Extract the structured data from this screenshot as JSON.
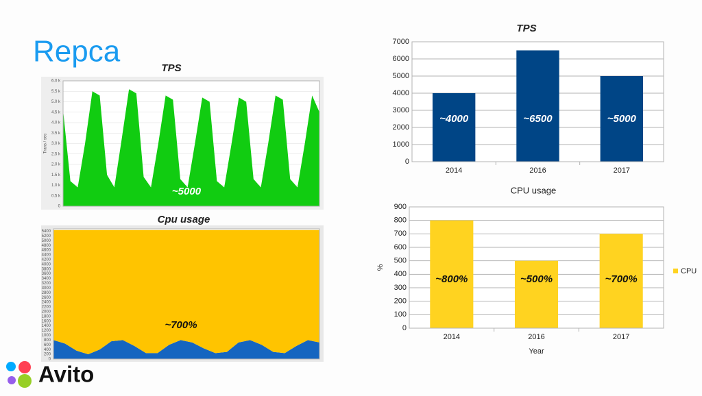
{
  "slide_title": "Repca",
  "logo": "Avito",
  "chart_data": [
    {
      "type": "area",
      "title": "TPS",
      "y_label": "Trans / sec",
      "color": "#11cc11",
      "annotation": "~5000",
      "values": [
        4600,
        1200,
        900,
        3000,
        5500,
        5300,
        1500,
        900,
        3200,
        5600,
        5400,
        1400,
        900,
        3000,
        5300,
        5100,
        1300,
        900,
        3000,
        5200,
        5000,
        1200,
        900,
        3000,
        5200,
        5000,
        1300,
        900,
        3000,
        5300,
        5100,
        1300,
        900,
        3000,
        5300,
        4500
      ],
      "ylim": [
        0,
        6000
      ],
      "yticks": [
        0,
        {
          "value": 500,
          "label": "0.5 k"
        },
        {
          "value": 1000,
          "label": "1.0 k"
        },
        {
          "value": 1500,
          "label": "1.5 k"
        },
        {
          "value": 2000,
          "label": "2.0 k"
        },
        {
          "value": 2500,
          "label": "2.5 k"
        },
        {
          "value": 3000,
          "label": "3.0 k"
        },
        {
          "value": 3500,
          "label": "3.5 k"
        },
        {
          "value": 4000,
          "label": "4.0 k"
        },
        {
          "value": 4500,
          "label": "4.5 k"
        },
        {
          "value": 5000,
          "label": "5.0 k"
        },
        {
          "value": 5500,
          "label": "5.5 k"
        },
        {
          "value": 6000,
          "label": "6.0 k"
        }
      ],
      "grid": true
    },
    {
      "type": "stacked-area",
      "title": "Cpu  usage",
      "annotation": "~700%",
      "series": [
        {
          "color": "#1565c0",
          "values": [
            800,
            650,
            350,
            200,
            400,
            750,
            800,
            550,
            250,
            250,
            600,
            800,
            700,
            450,
            250,
            300,
            700,
            800,
            600,
            300,
            250,
            550,
            800,
            700
          ]
        },
        {
          "color": "#ffc400",
          "values": [
            4650,
            4800,
            5100,
            5250,
            5050,
            4700,
            4650,
            4900,
            5200,
            5200,
            4850,
            4650,
            4750,
            5000,
            5200,
            5150,
            4750,
            4650,
            4850,
            5150,
            5200,
            4900,
            4650,
            4750
          ]
        }
      ],
      "ylim": [
        0,
        5500
      ],
      "yticks": [
        0,
        200,
        400,
        600,
        800,
        1000,
        1200,
        1400,
        1600,
        1800,
        2000,
        2200,
        2400,
        2600,
        2800,
        3000,
        3200,
        3400,
        3600,
        3800,
        4000,
        4200,
        4400,
        4600,
        4800,
        5000,
        5200,
        5400
      ],
      "grid": true
    },
    {
      "type": "bar",
      "title": "TPS",
      "categories": [
        "2014",
        "2016",
        "2017"
      ],
      "values": [
        4000,
        6500,
        5000
      ],
      "value_labels": [
        "~4000",
        "~6500",
        "~5000"
      ],
      "color": "#004586",
      "ylim": [
        0,
        7000
      ],
      "yticks": [
        0,
        1000,
        2000,
        3000,
        4000,
        5000,
        6000,
        7000
      ],
      "grid": true
    },
    {
      "type": "bar",
      "title": "CPU usage",
      "x_label": "Year",
      "y_label": "%",
      "categories": [
        "2014",
        "2016",
        "2017"
      ],
      "series": [
        {
          "name": "CPU",
          "color": "#ffd320",
          "values": [
            800,
            500,
            700
          ],
          "value_labels": [
            "~800%",
            "~500%",
            "~700%"
          ]
        }
      ],
      "ylim": [
        0,
        900
      ],
      "yticks": [
        0,
        100,
        200,
        300,
        400,
        500,
        600,
        700,
        800,
        900
      ],
      "grid": true,
      "legend": "right"
    }
  ]
}
